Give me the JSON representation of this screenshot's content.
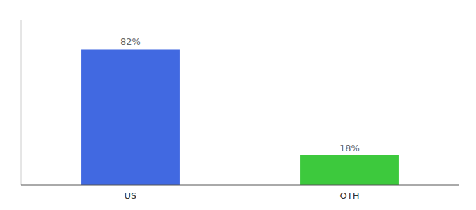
{
  "chart_data": {
    "type": "bar",
    "categories": [
      "US",
      "OTH"
    ],
    "values": [
      82,
      18
    ],
    "value_labels": [
      "82%",
      "18%"
    ],
    "colors": [
      "#4169E1",
      "#3DC93D"
    ],
    "ylim": [
      0,
      100
    ],
    "data_labels": true,
    "tick_labels": "x"
  }
}
